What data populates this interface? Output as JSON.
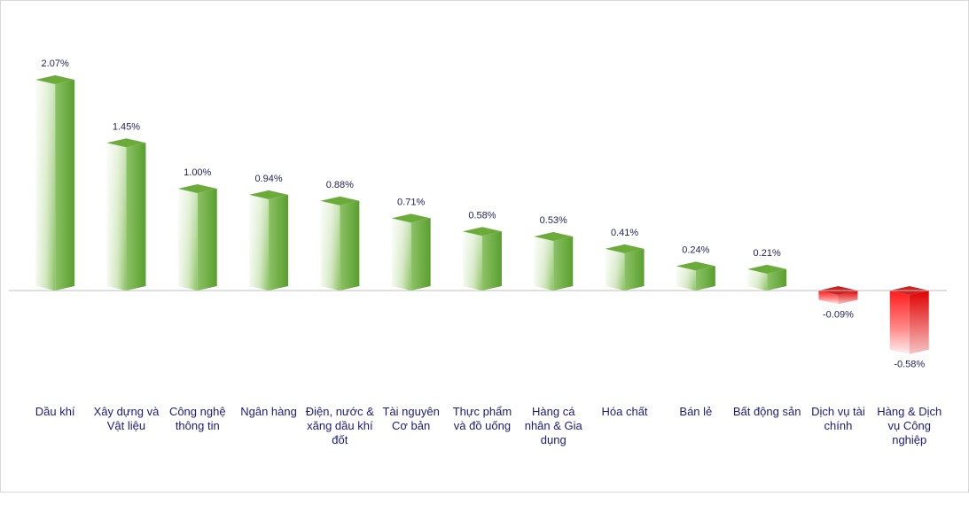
{
  "chart_data": {
    "type": "bar",
    "categories": [
      [
        "Dầu khí"
      ],
      [
        "Xây dựng và",
        "Vật liệu"
      ],
      [
        "Công nghệ",
        "thông tin"
      ],
      [
        "Ngân hàng"
      ],
      [
        "Điện, nước &",
        "xăng dầu khí",
        "đốt"
      ],
      [
        "Tài nguyên",
        "Cơ bản"
      ],
      [
        "Thực phẩm",
        "và đồ uống"
      ],
      [
        "Hàng cá",
        "nhân & Gia",
        "dụng"
      ],
      [
        "Hóa chất"
      ],
      [
        "Bán lẻ"
      ],
      [
        "Bất động sản"
      ],
      [
        "Dịch vụ tài",
        "chính"
      ],
      [
        "Hàng & Dịch",
        "vụ Công",
        "nghiệp"
      ]
    ],
    "values": [
      2.07,
      1.45,
      1.0,
      0.94,
      0.88,
      0.71,
      0.58,
      0.53,
      0.41,
      0.24,
      0.21,
      -0.09,
      -0.58
    ],
    "value_labels": [
      "2.07%",
      "1.45%",
      "1.00%",
      "0.94%",
      "0.88%",
      "0.71%",
      "0.58%",
      "0.53%",
      "0.41%",
      "0.24%",
      "0.21%",
      "-0.09%",
      "-0.58%"
    ],
    "unit": "%",
    "grid": false,
    "legend": "none",
    "colors": {
      "positive_dark": "#5a9e2f",
      "positive_light": "#f4f9ef",
      "positive_top": "#6aab3a",
      "negative_dark": "#ff1a1a",
      "negative_light": "#fdeaea",
      "negative_top": "#cc2222",
      "axis": "#bfbfbf",
      "label_text": "#1f1f5c",
      "category_text": "#1a1a80"
    }
  }
}
